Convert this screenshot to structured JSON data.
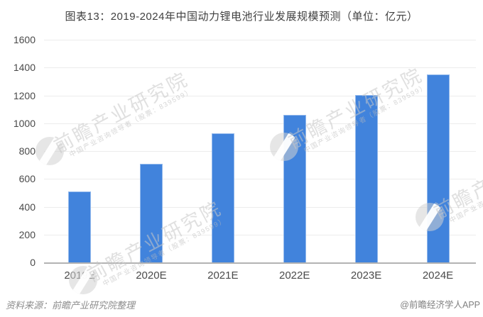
{
  "chart_data": {
    "type": "bar",
    "title": "图表13：2019-2024年中国动力锂电池行业发展规模预测（单位：亿元）",
    "unit": "亿元",
    "categories": [
      "2019E",
      "2020E",
      "2021E",
      "2022E",
      "2023E",
      "2024E"
    ],
    "values": [
      510,
      710,
      925,
      1060,
      1205,
      1350
    ],
    "xlabel": "",
    "ylabel": "",
    "ylim": [
      0,
      1600
    ],
    "ytick_step": 200,
    "yticks": [
      0,
      200,
      400,
      600,
      800,
      1000,
      1200,
      1400,
      1600
    ],
    "grid": true,
    "legend": false,
    "bar_color": "#4183dc",
    "bar_border_color": "#93b9ec"
  },
  "watermark": {
    "logo": "globe-icon",
    "text_large": "前瞻产业研究院",
    "text_small": "中国产业咨询领导者（股票：839599）"
  },
  "footer": {
    "source": "资料来源：前瞻产业研究院整理",
    "credit": "@前瞻经济学人APP"
  },
  "colors": {
    "bar": "#4183dc",
    "grid": "#ececec",
    "axis": "#b3b3b3",
    "labels": "#4a4a4a",
    "title": "#404040",
    "footer": "#8c8c8c"
  }
}
